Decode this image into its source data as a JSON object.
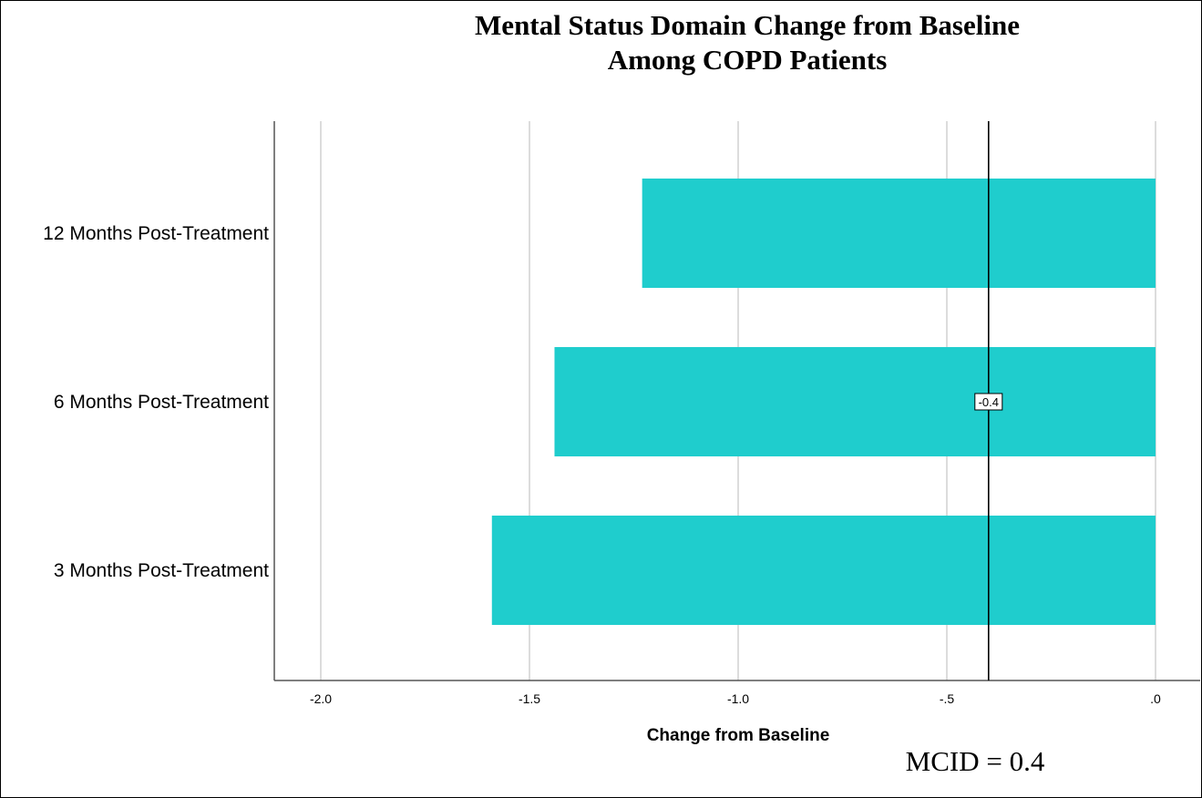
{
  "chart_data": {
    "type": "bar",
    "orientation": "horizontal",
    "title_lines": [
      "Mental Status Domain Change from Baseline",
      "Among COPD Patients"
    ],
    "categories": [
      "12 Months Post-Treatment",
      "6 Months Post-Treatment",
      "3 Months Post-Treatment"
    ],
    "values": [
      -1.23,
      -1.44,
      -1.59
    ],
    "xlabel": "Change from Baseline",
    "ylabel": "",
    "xlim": [
      -2.1,
      0.05
    ],
    "xticks": [
      -2.0,
      -1.5,
      -1.0,
      -0.5,
      0.0
    ],
    "xtick_labels": [
      "-2.0",
      "-1.5",
      "-1.0",
      "-.5",
      ".0"
    ],
    "grid": true,
    "legend": "none",
    "bar_color": "#1fcdcd",
    "reference_line": {
      "value": -0.4,
      "label": "-0.4",
      "color": "#000000"
    }
  },
  "note": "MCID = 0.4"
}
